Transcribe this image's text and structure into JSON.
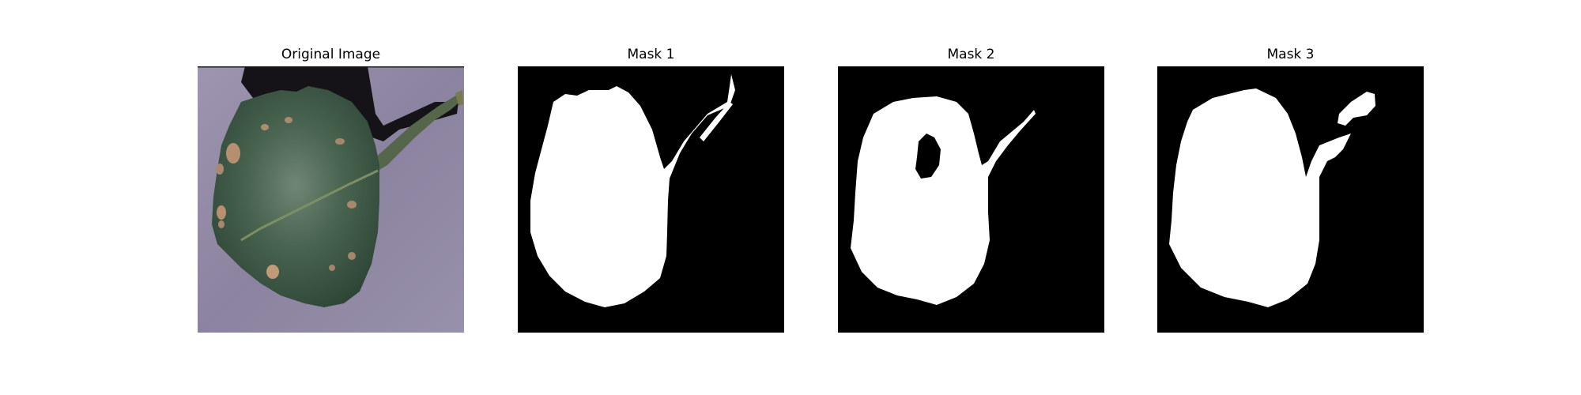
{
  "figure": {
    "panels": [
      {
        "title": "Original Image",
        "content": "leaf-photo"
      },
      {
        "title": "Mask 1",
        "content": "binary-mask"
      },
      {
        "title": "Mask 2",
        "content": "binary-mask"
      },
      {
        "title": "Mask 3",
        "content": "binary-mask"
      }
    ]
  },
  "colors": {
    "background": "#ffffff",
    "mask_foreground": "#ffffff",
    "mask_background": "#000000",
    "leaf": "#3f5a46",
    "surface": "#8e86a2",
    "shadow": "#141216"
  }
}
